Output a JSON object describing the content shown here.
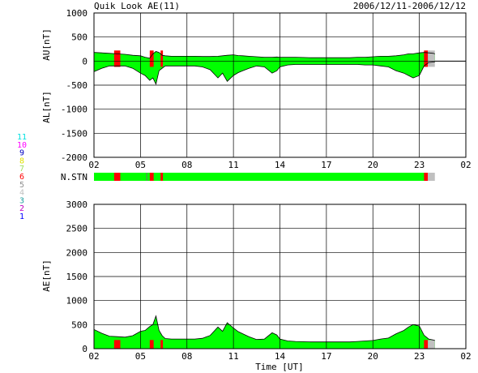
{
  "header": {
    "title": "Quik Look AE(11)",
    "date_range": "2006/12/11-2006/12/12"
  },
  "colors": {
    "fill": "#00ff00",
    "missing": "#ff0000",
    "nodata": "#c0c0c0",
    "line": "#000000"
  },
  "station_legend": [
    {
      "label": "11",
      "color": "#00e0e0"
    },
    {
      "label": "10",
      "color": "#ff00ff"
    },
    {
      "label": "9",
      "color": "#0000c0"
    },
    {
      "label": "8",
      "color": "#e0e000"
    },
    {
      "label": "7",
      "color": "#a0e060"
    },
    {
      "label": "6",
      "color": "#ff0000"
    },
    {
      "label": "5",
      "color": "#909090"
    },
    {
      "label": "4",
      "color": "#c0c0c0"
    },
    {
      "label": "3",
      "color": "#20a0a0"
    },
    {
      "label": "2",
      "color": "#c000c0"
    },
    {
      "label": "1",
      "color": "#0000ff"
    }
  ],
  "chart_data": [
    {
      "type": "area",
      "name": "au-al-panel",
      "au_label": "AU[nT]",
      "al_label": "AL[nT]",
      "ylim": [
        -2000,
        1000
      ],
      "yticks": [
        "1000",
        "500",
        "0",
        "-500",
        "-1000",
        "-1500",
        "-2000"
      ],
      "xlim": [
        2,
        26
      ],
      "xticks": [
        "02",
        "05",
        "08",
        "11",
        "14",
        "17",
        "20",
        "23",
        "02"
      ],
      "x": [
        2.0,
        2.5,
        3.0,
        3.5,
        4.0,
        4.5,
        5.0,
        5.3,
        5.6,
        5.8,
        6.0,
        6.2,
        6.4,
        6.6,
        7.0,
        7.5,
        8.0,
        8.5,
        9.0,
        9.5,
        10.0,
        10.3,
        10.6,
        11.0,
        11.3,
        11.6,
        12.0,
        12.5,
        13.0,
        13.5,
        13.8,
        14.0,
        14.5,
        15.0,
        15.5,
        16.0,
        16.5,
        17.0,
        17.5,
        18.0,
        18.5,
        19.0,
        19.5,
        20.0,
        20.5,
        21.0,
        21.5,
        22.0,
        22.3,
        22.6,
        23.0,
        23.3,
        23.6,
        23.9,
        24.0
      ],
      "au": [
        180,
        170,
        160,
        150,
        140,
        120,
        110,
        80,
        60,
        150,
        200,
        180,
        120,
        110,
        100,
        100,
        100,
        100,
        95,
        95,
        100,
        110,
        120,
        130,
        115,
        110,
        100,
        90,
        80,
        80,
        85,
        80,
        80,
        80,
        75,
        70,
        70,
        70,
        70,
        70,
        70,
        80,
        80,
        90,
        100,
        100,
        110,
        130,
        150,
        150,
        170,
        180,
        170,
        160,
        150
      ],
      "al": [
        -220,
        -150,
        -100,
        -100,
        -100,
        -150,
        -250,
        -300,
        -400,
        -350,
        -480,
        -200,
        -150,
        -100,
        -100,
        -100,
        -100,
        -100,
        -120,
        -180,
        -350,
        -250,
        -420,
        -300,
        -240,
        -200,
        -150,
        -100,
        -120,
        -250,
        -200,
        -120,
        -80,
        -70,
        -70,
        -70,
        -70,
        -70,
        -70,
        -70,
        -70,
        -70,
        -80,
        -80,
        -100,
        -120,
        -200,
        -250,
        -300,
        -350,
        -300,
        -100,
        -30,
        -20,
        -20
      ],
      "missing_intervals": [
        [
          3.3,
          3.7
        ],
        [
          5.6,
          5.85
        ],
        [
          6.3,
          6.45
        ],
        [
          23.3,
          23.55
        ]
      ],
      "no_data_interval": [
        23.55,
        24.0
      ]
    },
    {
      "type": "table",
      "name": "station-count-bar",
      "label": "N.STN",
      "xlim": [
        2,
        26
      ],
      "missing_intervals": [
        [
          3.3,
          3.7
        ],
        [
          5.6,
          5.85
        ],
        [
          6.3,
          6.45
        ],
        [
          23.3,
          23.55
        ]
      ],
      "no_data_interval": [
        23.55,
        24.0
      ]
    },
    {
      "type": "area",
      "name": "ae-panel",
      "ylabel": "AE[nT]",
      "xlabel": "Time [UT]",
      "ylim": [
        0,
        3000
      ],
      "yticks": [
        "3000",
        "2500",
        "2000",
        "1500",
        "1000",
        "500",
        "0"
      ],
      "xlim": [
        2,
        26
      ],
      "xticks": [
        "02",
        "05",
        "08",
        "11",
        "14",
        "17",
        "20",
        "23",
        "02"
      ],
      "x": [
        2.0,
        2.5,
        3.0,
        3.5,
        4.0,
        4.5,
        5.0,
        5.3,
        5.6,
        5.8,
        6.0,
        6.2,
        6.4,
        6.6,
        7.0,
        7.5,
        8.0,
        8.5,
        9.0,
        9.5,
        10.0,
        10.3,
        10.6,
        11.0,
        11.3,
        11.6,
        12.0,
        12.5,
        13.0,
        13.5,
        13.8,
        14.0,
        14.5,
        15.0,
        15.5,
        16.0,
        16.5,
        17.0,
        17.5,
        18.0,
        18.5,
        19.0,
        19.5,
        20.0,
        20.5,
        21.0,
        21.5,
        22.0,
        22.3,
        22.6,
        23.0,
        23.3,
        23.6,
        23.9,
        24.0
      ],
      "values": [
        400,
        320,
        260,
        250,
        240,
        270,
        360,
        380,
        460,
        500,
        680,
        380,
        270,
        210,
        200,
        200,
        200,
        200,
        215,
        275,
        450,
        360,
        540,
        430,
        355,
        310,
        250,
        190,
        200,
        330,
        285,
        200,
        160,
        150,
        145,
        140,
        140,
        140,
        140,
        140,
        140,
        150,
        160,
        170,
        200,
        220,
        310,
        380,
        450,
        500,
        470,
        280,
        200,
        180,
        170
      ],
      "missing_intervals": [
        [
          3.3,
          3.7
        ],
        [
          5.6,
          5.85
        ],
        [
          6.3,
          6.45
        ],
        [
          23.3,
          23.55
        ]
      ],
      "no_data_interval": [
        23.55,
        24.0
      ]
    }
  ]
}
